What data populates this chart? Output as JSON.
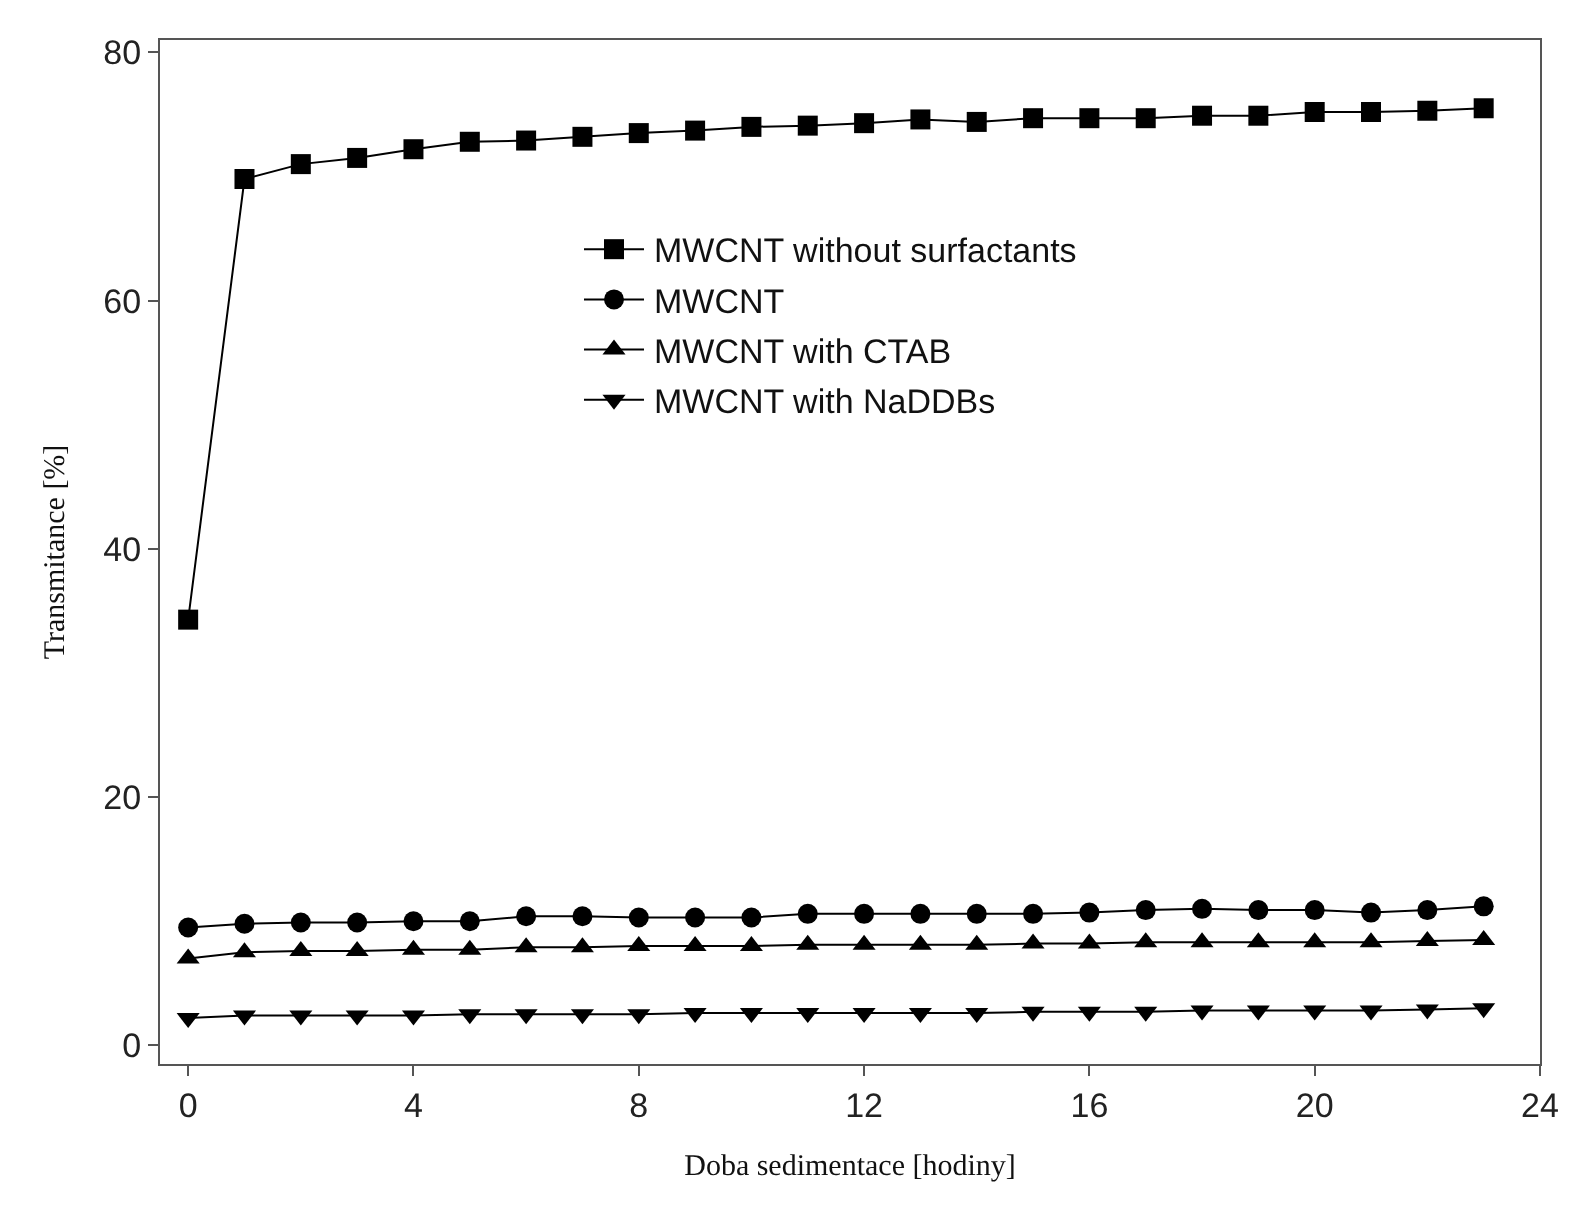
{
  "chart_data": {
    "type": "line",
    "xlabel": "Doba sedimentace [hodiny]",
    "ylabel": "Transmitance [%]",
    "x": [
      0,
      1,
      2,
      3,
      4,
      5,
      6,
      7,
      8,
      9,
      10,
      11,
      12,
      13,
      14,
      15,
      16,
      17,
      18,
      19,
      20,
      21,
      22,
      23
    ],
    "xlim": [
      -0.5,
      24
    ],
    "xticks": [
      0,
      4,
      8,
      12,
      16,
      20,
      24
    ],
    "ylim": [
      -1.5,
      81
    ],
    "yticks": [
      0,
      20,
      40,
      60,
      80
    ],
    "legend": "top right",
    "series": [
      {
        "name": "MWCNT without surfactants",
        "color": "#000000",
        "marker": "square",
        "values": [
          34.3,
          69.8,
          71,
          71.5,
          72.2,
          72.8,
          72.9,
          73.2,
          73.5,
          73.7,
          74,
          74.1,
          74.3,
          74.6,
          74.4,
          74.7,
          74.7,
          74.7,
          74.9,
          74.9,
          75.2,
          75.2,
          75.3,
          75.5
        ]
      },
      {
        "name": "MWCNT",
        "color": "#000000",
        "marker": "circle",
        "values": [
          9.5,
          9.8,
          9.9,
          9.9,
          10,
          10,
          10.4,
          10.4,
          10.3,
          10.3,
          10.3,
          10.6,
          10.6,
          10.6,
          10.6,
          10.6,
          10.7,
          10.9,
          11,
          10.9,
          10.9,
          10.7,
          10.9,
          11.2
        ]
      },
      {
        "name": "MWCNT with CTAB",
        "color": "#000000",
        "marker": "triangle",
        "values": [
          7,
          7.5,
          7.6,
          7.6,
          7.7,
          7.7,
          7.9,
          7.9,
          8,
          8,
          8,
          8.1,
          8.1,
          8.1,
          8.1,
          8.2,
          8.2,
          8.3,
          8.3,
          8.3,
          8.3,
          8.3,
          8.4,
          8.5
        ]
      },
      {
        "name": "MWCNT with NaDDBs",
        "color": "#000000",
        "marker": "triangle-down",
        "values": [
          2.2,
          2.4,
          2.4,
          2.4,
          2.4,
          2.5,
          2.5,
          2.5,
          2.5,
          2.6,
          2.6,
          2.6,
          2.6,
          2.6,
          2.6,
          2.7,
          2.7,
          2.7,
          2.8,
          2.8,
          2.8,
          2.8,
          2.9,
          3.0
        ]
      }
    ]
  }
}
